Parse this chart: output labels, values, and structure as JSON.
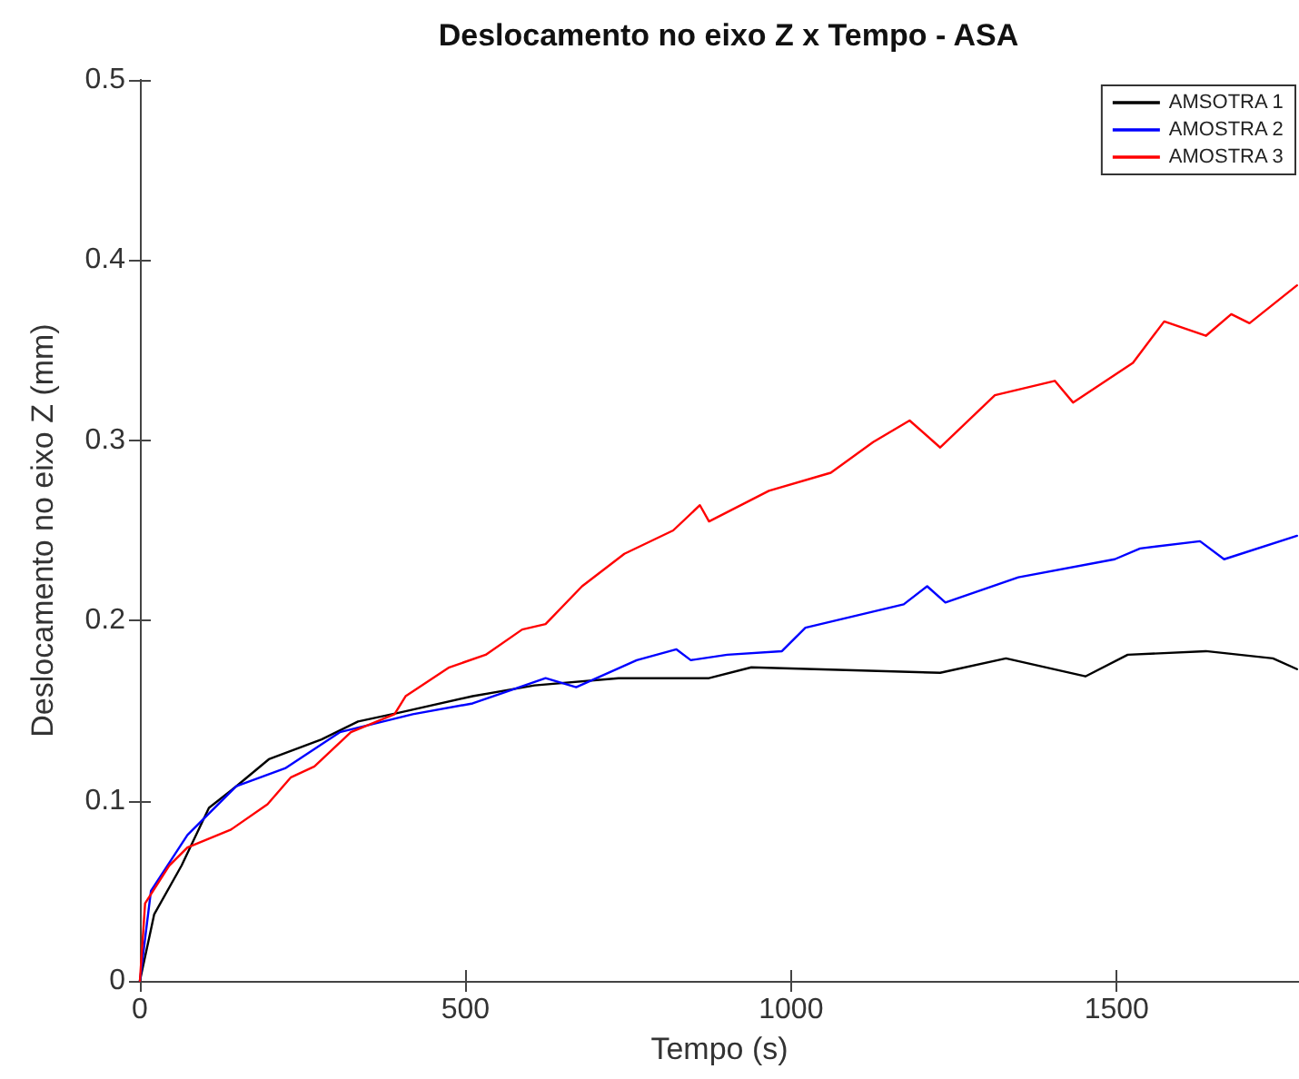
{
  "chart_data": {
    "type": "line",
    "title": "Deslocamento no eixo Z x Tempo - ASA",
    "xlabel": "Tempo (s)",
    "ylabel": "Deslocamento no eixo Z (mm)",
    "xlim": [
      0,
      1780
    ],
    "xticks": [
      0,
      500,
      1000,
      1500
    ],
    "ylim": [
      0,
      0.5
    ],
    "yticks": [
      0,
      0.1,
      0.2,
      0.3,
      0.4,
      0.5
    ],
    "grid": false,
    "legend": "top right",
    "marker": "none",
    "line_style": "solid",
    "series": [
      {
        "name": "AMSOTRA 1",
        "color": "#000000",
        "x": [
          0,
          22,
          64,
          106,
          148,
          198,
          279,
          335,
          400,
          511,
          606,
          735,
          874,
          939,
          1229,
          1330,
          1452,
          1517,
          1637,
          1740,
          1777
        ],
        "values": [
          0,
          0.037,
          0.064,
          0.096,
          0.108,
          0.123,
          0.134,
          0.144,
          0.149,
          0.158,
          0.164,
          0.168,
          0.168,
          0.174,
          0.171,
          0.179,
          0.169,
          0.181,
          0.183,
          0.179,
          0.173
        ]
      },
      {
        "name": "AMOSTRA 2",
        "color": "#0000ff",
        "x": [
          0,
          17,
          73,
          148,
          223,
          307,
          419,
          511,
          623,
          670,
          763,
          824,
          846,
          902,
          986,
          1022,
          1173,
          1209,
          1237,
          1349,
          1497,
          1536,
          1628,
          1665,
          1777
        ],
        "values": [
          0,
          0.05,
          0.081,
          0.108,
          0.118,
          0.138,
          0.148,
          0.154,
          0.168,
          0.163,
          0.178,
          0.184,
          0.178,
          0.181,
          0.183,
          0.196,
          0.209,
          0.219,
          0.21,
          0.224,
          0.234,
          0.24,
          0.244,
          0.234,
          0.247
        ]
      },
      {
        "name": "AMOSTRA 3",
        "color": "#ff0000",
        "x": [
          0,
          8,
          45,
          73,
          140,
          196,
          232,
          268,
          324,
          391,
          408,
          475,
          531,
          587,
          623,
          679,
          744,
          819,
          860,
          874,
          966,
          1061,
          1126,
          1182,
          1229,
          1313,
          1405,
          1433,
          1525,
          1573,
          1637,
          1676,
          1704,
          1777
        ],
        "values": [
          0,
          0.043,
          0.064,
          0.074,
          0.084,
          0.098,
          0.113,
          0.119,
          0.138,
          0.148,
          0.158,
          0.174,
          0.181,
          0.195,
          0.198,
          0.219,
          0.237,
          0.25,
          0.264,
          0.255,
          0.272,
          0.282,
          0.299,
          0.311,
          0.296,
          0.325,
          0.333,
          0.321,
          0.343,
          0.366,
          0.358,
          0.37,
          0.365,
          0.386
        ]
      }
    ]
  }
}
